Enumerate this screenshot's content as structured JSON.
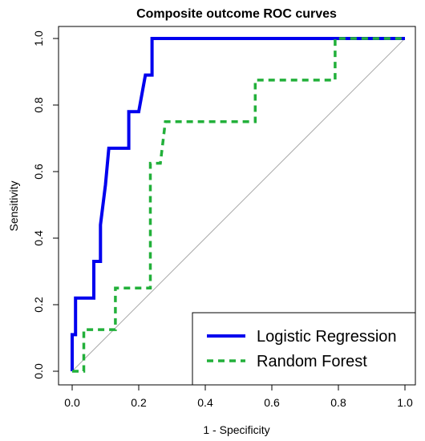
{
  "chart_data": {
    "type": "line",
    "title": "Composite outcome ROC curves",
    "xlabel": "1 - Specificity",
    "ylabel": "Sensitivity",
    "xlim": [
      0,
      1
    ],
    "ylim": [
      0,
      1
    ],
    "xticks": [
      "0.0",
      "0.2",
      "0.4",
      "0.6",
      "0.8",
      "1.0"
    ],
    "yticks": [
      "0.0",
      "0.2",
      "0.4",
      "0.6",
      "0.8",
      "1.0"
    ],
    "legend_position": "bottom-right",
    "reference_line": {
      "from": [
        0,
        0
      ],
      "to": [
        1,
        1
      ],
      "color": "#aaaaaa"
    },
    "series": [
      {
        "name": "Logistic Regression",
        "style": "solid",
        "color": "#0000ee",
        "x": [
          0,
          0,
          0.01,
          0.01,
          0.065,
          0.065,
          0.085,
          0.085,
          0.1,
          0.11,
          0.11,
          0.17,
          0.17,
          0.2,
          0.22,
          0.24,
          0.24,
          1
        ],
        "y": [
          0,
          0.11,
          0.11,
          0.22,
          0.22,
          0.33,
          0.33,
          0.44,
          0.56,
          0.67,
          0.67,
          0.67,
          0.78,
          0.78,
          0.89,
          0.89,
          1,
          1
        ]
      },
      {
        "name": "Random Forest",
        "style": "dashed",
        "color": "#22b03a",
        "x": [
          0,
          0.035,
          0.035,
          0.13,
          0.13,
          0.145,
          0.145,
          0.235,
          0.235,
          0.265,
          0.28,
          0.55,
          0.55,
          0.79,
          0.79,
          1
        ],
        "y": [
          0,
          0,
          0.125,
          0.125,
          0.25,
          0.25,
          0.25,
          0.25,
          0.625,
          0.625,
          0.75,
          0.75,
          0.875,
          0.875,
          1,
          1
        ]
      }
    ]
  }
}
